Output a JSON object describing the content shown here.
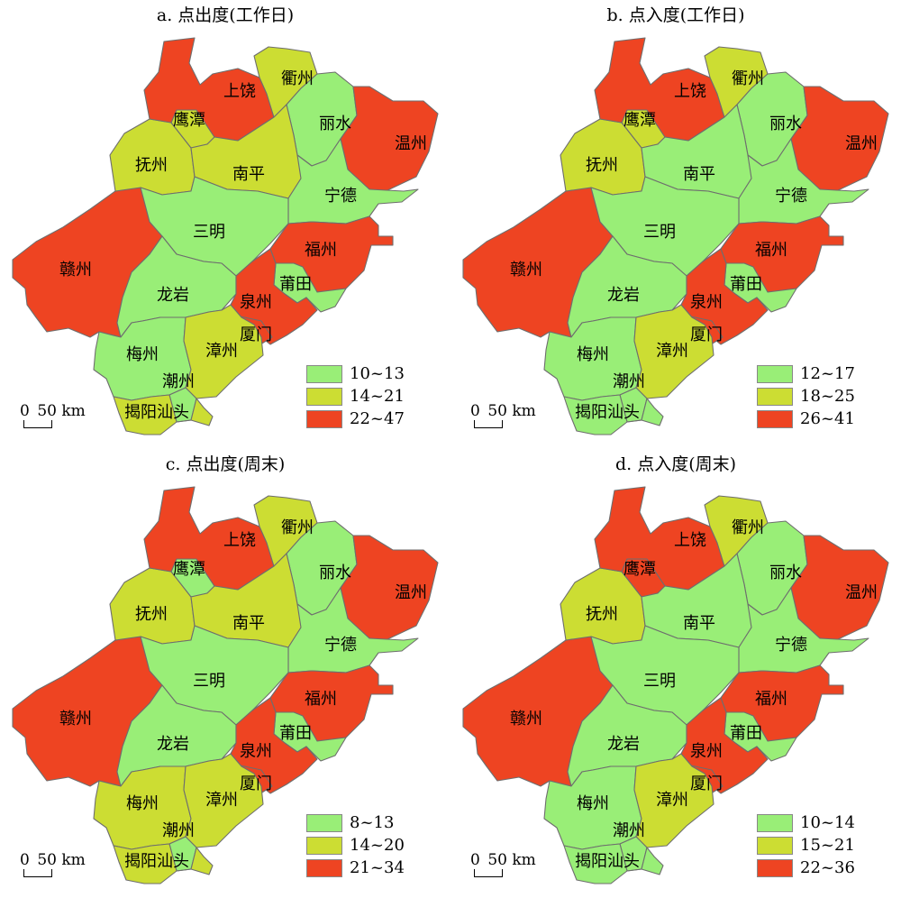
{
  "colors": {
    "low": "#99ee77",
    "mid": "#ccdd33",
    "high": "#ee4422",
    "outline": "#6e6e6e"
  },
  "scale": {
    "zero": "0",
    "distance": "50 km"
  },
  "panels": [
    {
      "title": "a. 点出度(工作日)",
      "legend": [
        "10~13",
        "14~21",
        "22~47"
      ],
      "classes": {
        "上饶": "high",
        "衢州": "mid",
        "鹰潭": "mid",
        "丽水": "low",
        "温州": "high",
        "抚州": "mid",
        "南平": "mid",
        "宁德": "low",
        "赣州": "high",
        "三明": "low",
        "福州": "high",
        "龙岩": "low",
        "莆田": "low",
        "泉州": "high",
        "厦门": "high",
        "梅州": "low",
        "漳州": "mid",
        "潮州": "low",
        "揭阳": "mid",
        "汕头": "mid"
      }
    },
    {
      "title": "b. 点入度(工作日)",
      "legend": [
        "12~17",
        "18~25",
        "26~41"
      ],
      "classes": {
        "上饶": "high",
        "衢州": "mid",
        "鹰潭": "mid",
        "丽水": "low",
        "温州": "high",
        "抚州": "mid",
        "南平": "low",
        "宁德": "low",
        "赣州": "high",
        "三明": "low",
        "福州": "high",
        "龙岩": "low",
        "莆田": "low",
        "泉州": "high",
        "厦门": "high",
        "梅州": "low",
        "漳州": "mid",
        "潮州": "low",
        "揭阳": "low",
        "汕头": "low"
      }
    },
    {
      "title": "c. 点出度(周末)",
      "legend": [
        "8~13",
        "14~20",
        "21~34"
      ],
      "classes": {
        "上饶": "high",
        "衢州": "mid",
        "鹰潭": "low",
        "丽水": "low",
        "温州": "high",
        "抚州": "mid",
        "南平": "mid",
        "宁德": "low",
        "赣州": "high",
        "三明": "low",
        "福州": "high",
        "龙岩": "low",
        "莆田": "low",
        "泉州": "high",
        "厦门": "high",
        "梅州": "mid",
        "漳州": "mid",
        "潮州": "low",
        "揭阳": "mid",
        "汕头": "mid"
      }
    },
    {
      "title": "d. 点入度(周末)",
      "legend": [
        "10~14",
        "15~21",
        "22~36"
      ],
      "classes": {
        "上饶": "high",
        "衢州": "mid",
        "鹰潭": "high",
        "丽水": "low",
        "温州": "high",
        "抚州": "mid",
        "南平": "low",
        "宁德": "low",
        "赣州": "high",
        "三明": "low",
        "福州": "high",
        "龙岩": "low",
        "莆田": "low",
        "泉州": "high",
        "厦门": "high",
        "梅州": "low",
        "漳州": "mid",
        "潮州": "low",
        "揭阳": "low",
        "汕头": "low"
      }
    }
  ],
  "labels": [
    "上饶",
    "衢州",
    "鹰潭",
    "丽水",
    "温州",
    "抚州",
    "南平",
    "宁德",
    "三明",
    "福州",
    "赣州",
    "龙岩",
    "莆田",
    "泉州",
    "厦门",
    "梅州",
    "漳州",
    "潮州",
    "揭阳汕头"
  ]
}
